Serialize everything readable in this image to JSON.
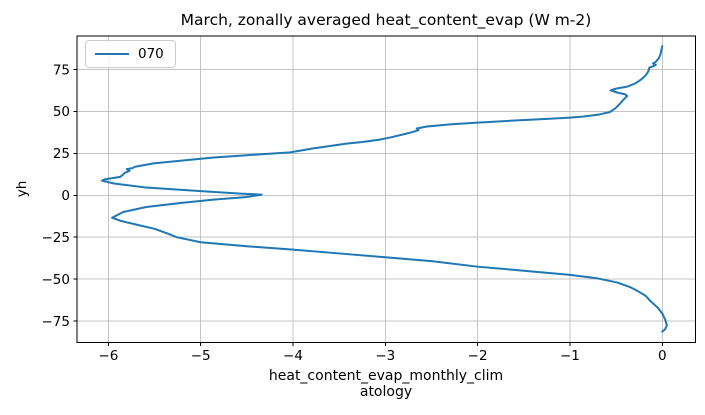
{
  "chart_data": {
    "type": "line",
    "title": "March, zonally averaged heat_content_evap (W m-2)",
    "ylabel": "yh",
    "xlabel": "heat_content_evap_monthly_climatology",
    "xlabel_lines": [
      "heat_content_evap_monthly_clim",
      "atology"
    ],
    "legend_position": "upper left",
    "grid": true,
    "xlim": [
      -6.34,
      0.36
    ],
    "ylim": [
      -87.7,
      95.0
    ],
    "xticks": [
      -6,
      -5,
      -4,
      -3,
      -2,
      -1,
      0
    ],
    "xtick_labels": [
      "−6",
      "−5",
      "−4",
      "−3",
      "−2",
      "−1",
      "0"
    ],
    "yticks": [
      -75,
      -50,
      -25,
      0,
      25,
      50,
      75
    ],
    "ytick_labels": [
      "−75",
      "−50",
      "−25",
      "0",
      "25",
      "50",
      "75"
    ],
    "colors": {
      "line": "#1f77b4",
      "grid": "#c4c4c4",
      "spine": "#000000",
      "legend_border": "#cccccc",
      "background": "#ffffff"
    },
    "series": [
      {
        "name": "070",
        "color": "#1f77b4",
        "points": [
          [
            0.0,
            88.9
          ],
          [
            -0.02,
            84.0
          ],
          [
            -0.04,
            81.5
          ],
          [
            -0.07,
            79.6
          ],
          [
            -0.1,
            78.6
          ],
          [
            -0.07,
            77.8
          ],
          [
            -0.1,
            76.9
          ],
          [
            -0.14,
            76.2
          ],
          [
            -0.15,
            74.0
          ],
          [
            -0.18,
            71.5
          ],
          [
            -0.23,
            69.0
          ],
          [
            -0.29,
            66.8
          ],
          [
            -0.38,
            64.8
          ],
          [
            -0.5,
            63.6
          ],
          [
            -0.56,
            62.6
          ],
          [
            -0.49,
            61.3
          ],
          [
            -0.4,
            60.2
          ],
          [
            -0.38,
            59.2
          ],
          [
            -0.42,
            57.0
          ],
          [
            -0.46,
            54.5
          ],
          [
            -0.51,
            51.8
          ],
          [
            -0.57,
            49.6
          ],
          [
            -0.68,
            48.2
          ],
          [
            -0.85,
            47.0
          ],
          [
            -1.0,
            46.3
          ],
          [
            -1.3,
            45.4
          ],
          [
            -1.6,
            44.6
          ],
          [
            -2.0,
            43.3
          ],
          [
            -2.3,
            42.3
          ],
          [
            -2.55,
            41.0
          ],
          [
            -2.66,
            39.8
          ],
          [
            -2.64,
            38.8
          ],
          [
            -2.74,
            37.2
          ],
          [
            -2.92,
            34.8
          ],
          [
            -3.06,
            33.2
          ],
          [
            -3.25,
            31.8
          ],
          [
            -3.42,
            30.8
          ],
          [
            -3.6,
            29.4
          ],
          [
            -3.78,
            28.0
          ],
          [
            -4.03,
            25.6
          ],
          [
            -4.3,
            24.6
          ],
          [
            -4.5,
            23.9
          ],
          [
            -4.86,
            22.5
          ],
          [
            -5.22,
            20.6
          ],
          [
            -5.51,
            19.0
          ],
          [
            -5.71,
            17.0
          ],
          [
            -5.74,
            16.2
          ],
          [
            -5.8,
            15.6
          ],
          [
            -5.77,
            14.6
          ],
          [
            -5.82,
            13.4
          ],
          [
            -5.87,
            11.0
          ],
          [
            -6.04,
            9.5
          ],
          [
            -6.07,
            8.7
          ],
          [
            -5.94,
            7.0
          ],
          [
            -5.59,
            4.6
          ],
          [
            -5.04,
            2.6
          ],
          [
            -4.57,
            1.0
          ],
          [
            -4.34,
            0.4
          ],
          [
            -4.5,
            -1.0
          ],
          [
            -4.86,
            -2.6
          ],
          [
            -5.22,
            -4.6
          ],
          [
            -5.59,
            -7.0
          ],
          [
            -5.84,
            -10.0
          ],
          [
            -5.96,
            -13.4
          ],
          [
            -5.87,
            -15.2
          ],
          [
            -5.69,
            -17.6
          ],
          [
            -5.5,
            -20.0
          ],
          [
            -5.35,
            -23.0
          ],
          [
            -5.26,
            -25.0
          ],
          [
            -5.0,
            -28.0
          ],
          [
            -4.5,
            -30.4
          ],
          [
            -4.0,
            -32.4
          ],
          [
            -3.5,
            -34.7
          ],
          [
            -3.0,
            -37.0
          ],
          [
            -2.5,
            -39.3
          ],
          [
            -2.0,
            -42.6
          ],
          [
            -1.5,
            -45.0
          ],
          [
            -1.0,
            -47.5
          ],
          [
            -0.7,
            -49.6
          ],
          [
            -0.49,
            -52.0
          ],
          [
            -0.34,
            -55.0
          ],
          [
            -0.27,
            -57.0
          ],
          [
            -0.18,
            -60.0
          ],
          [
            -0.13,
            -63.0
          ],
          [
            -0.05,
            -67.0
          ],
          [
            0.0,
            -70.5
          ],
          [
            0.03,
            -74.0
          ],
          [
            0.05,
            -77.5
          ],
          [
            0.03,
            -80.0
          ],
          [
            0.0,
            -81.3
          ]
        ]
      }
    ]
  }
}
